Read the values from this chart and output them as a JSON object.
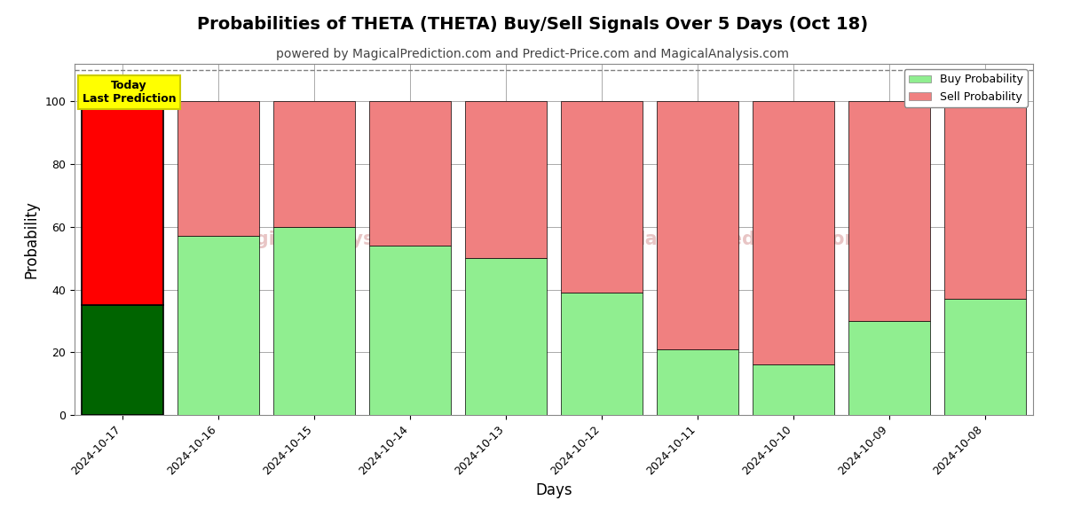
{
  "title": "Probabilities of THETA (THETA) Buy/Sell Signals Over 5 Days (Oct 18)",
  "subtitle": "powered by MagicalPrediction.com and Predict-Price.com and MagicalAnalysis.com",
  "xlabel": "Days",
  "ylabel": "Probability",
  "categories": [
    "2024-10-17",
    "2024-10-16",
    "2024-10-15",
    "2024-10-14",
    "2024-10-13",
    "2024-10-12",
    "2024-10-11",
    "2024-10-10",
    "2024-10-09",
    "2024-10-08"
  ],
  "buy_values": [
    35,
    57,
    60,
    54,
    50,
    39,
    21,
    16,
    30,
    37
  ],
  "sell_values": [
    65,
    43,
    40,
    46,
    50,
    61,
    79,
    84,
    70,
    63
  ],
  "today_index": 0,
  "today_buy_color": "#006400",
  "today_sell_color": "#FF0000",
  "buy_color": "#90EE90",
  "sell_color": "#F08080",
  "today_label_bg": "#FFFF00",
  "today_label_text": "Today\nLast Prediction",
  "ylim": [
    0,
    112
  ],
  "yticks": [
    0,
    20,
    40,
    60,
    80,
    100
  ],
  "dashed_line_y": 110,
  "legend_buy": "Buy Probability",
  "legend_sell": "Sell Probability",
  "bar_edge_color": "#000000",
  "bar_edge_width": 0.5,
  "grid_color": "#aaaaaa",
  "background_color": "#ffffff",
  "figsize": [
    12,
    6
  ],
  "dpi": 100,
  "title_fontsize": 14,
  "subtitle_fontsize": 10,
  "axis_label_fontsize": 12,
  "tick_fontsize": 9
}
